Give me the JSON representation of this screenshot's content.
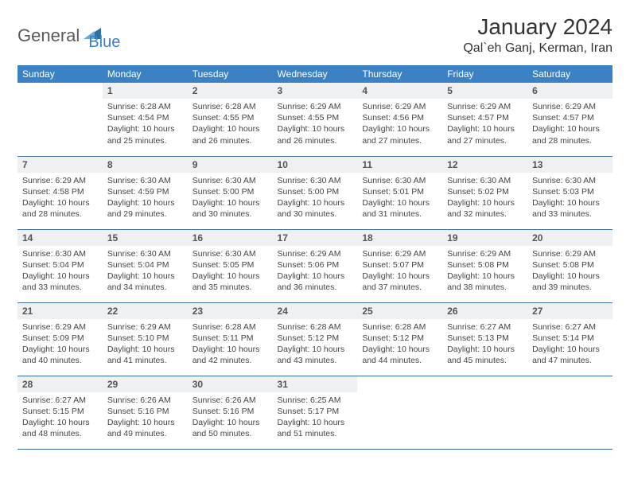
{
  "brand": {
    "part1": "General",
    "part2": "Blue",
    "logo_color": "#2f6fa8"
  },
  "title": "January 2024",
  "location": "Qal`eh Ganj, Kerman, Iran",
  "colors": {
    "header_bg": "#3b82c4",
    "header_text": "#ffffff",
    "daynum_bg": "#eef0f2",
    "row_border": "#3b6ea0",
    "body_text": "#444444"
  },
  "weekdays": [
    "Sunday",
    "Monday",
    "Tuesday",
    "Wednesday",
    "Thursday",
    "Friday",
    "Saturday"
  ],
  "leading_blanks": 1,
  "days": [
    {
      "n": 1,
      "sunrise": "6:28 AM",
      "sunset": "4:54 PM",
      "daylight": "10 hours and 25 minutes."
    },
    {
      "n": 2,
      "sunrise": "6:28 AM",
      "sunset": "4:55 PM",
      "daylight": "10 hours and 26 minutes."
    },
    {
      "n": 3,
      "sunrise": "6:29 AM",
      "sunset": "4:55 PM",
      "daylight": "10 hours and 26 minutes."
    },
    {
      "n": 4,
      "sunrise": "6:29 AM",
      "sunset": "4:56 PM",
      "daylight": "10 hours and 27 minutes."
    },
    {
      "n": 5,
      "sunrise": "6:29 AM",
      "sunset": "4:57 PM",
      "daylight": "10 hours and 27 minutes."
    },
    {
      "n": 6,
      "sunrise": "6:29 AM",
      "sunset": "4:57 PM",
      "daylight": "10 hours and 28 minutes."
    },
    {
      "n": 7,
      "sunrise": "6:29 AM",
      "sunset": "4:58 PM",
      "daylight": "10 hours and 28 minutes."
    },
    {
      "n": 8,
      "sunrise": "6:30 AM",
      "sunset": "4:59 PM",
      "daylight": "10 hours and 29 minutes."
    },
    {
      "n": 9,
      "sunrise": "6:30 AM",
      "sunset": "5:00 PM",
      "daylight": "10 hours and 30 minutes."
    },
    {
      "n": 10,
      "sunrise": "6:30 AM",
      "sunset": "5:00 PM",
      "daylight": "10 hours and 30 minutes."
    },
    {
      "n": 11,
      "sunrise": "6:30 AM",
      "sunset": "5:01 PM",
      "daylight": "10 hours and 31 minutes."
    },
    {
      "n": 12,
      "sunrise": "6:30 AM",
      "sunset": "5:02 PM",
      "daylight": "10 hours and 32 minutes."
    },
    {
      "n": 13,
      "sunrise": "6:30 AM",
      "sunset": "5:03 PM",
      "daylight": "10 hours and 33 minutes."
    },
    {
      "n": 14,
      "sunrise": "6:30 AM",
      "sunset": "5:04 PM",
      "daylight": "10 hours and 33 minutes."
    },
    {
      "n": 15,
      "sunrise": "6:30 AM",
      "sunset": "5:04 PM",
      "daylight": "10 hours and 34 minutes."
    },
    {
      "n": 16,
      "sunrise": "6:30 AM",
      "sunset": "5:05 PM",
      "daylight": "10 hours and 35 minutes."
    },
    {
      "n": 17,
      "sunrise": "6:29 AM",
      "sunset": "5:06 PM",
      "daylight": "10 hours and 36 minutes."
    },
    {
      "n": 18,
      "sunrise": "6:29 AM",
      "sunset": "5:07 PM",
      "daylight": "10 hours and 37 minutes."
    },
    {
      "n": 19,
      "sunrise": "6:29 AM",
      "sunset": "5:08 PM",
      "daylight": "10 hours and 38 minutes."
    },
    {
      "n": 20,
      "sunrise": "6:29 AM",
      "sunset": "5:08 PM",
      "daylight": "10 hours and 39 minutes."
    },
    {
      "n": 21,
      "sunrise": "6:29 AM",
      "sunset": "5:09 PM",
      "daylight": "10 hours and 40 minutes."
    },
    {
      "n": 22,
      "sunrise": "6:29 AM",
      "sunset": "5:10 PM",
      "daylight": "10 hours and 41 minutes."
    },
    {
      "n": 23,
      "sunrise": "6:28 AM",
      "sunset": "5:11 PM",
      "daylight": "10 hours and 42 minutes."
    },
    {
      "n": 24,
      "sunrise": "6:28 AM",
      "sunset": "5:12 PM",
      "daylight": "10 hours and 43 minutes."
    },
    {
      "n": 25,
      "sunrise": "6:28 AM",
      "sunset": "5:12 PM",
      "daylight": "10 hours and 44 minutes."
    },
    {
      "n": 26,
      "sunrise": "6:27 AM",
      "sunset": "5:13 PM",
      "daylight": "10 hours and 45 minutes."
    },
    {
      "n": 27,
      "sunrise": "6:27 AM",
      "sunset": "5:14 PM",
      "daylight": "10 hours and 47 minutes."
    },
    {
      "n": 28,
      "sunrise": "6:27 AM",
      "sunset": "5:15 PM",
      "daylight": "10 hours and 48 minutes."
    },
    {
      "n": 29,
      "sunrise": "6:26 AM",
      "sunset": "5:16 PM",
      "daylight": "10 hours and 49 minutes."
    },
    {
      "n": 30,
      "sunrise": "6:26 AM",
      "sunset": "5:16 PM",
      "daylight": "10 hours and 50 minutes."
    },
    {
      "n": 31,
      "sunrise": "6:25 AM",
      "sunset": "5:17 PM",
      "daylight": "10 hours and 51 minutes."
    }
  ],
  "labels": {
    "sunrise": "Sunrise:",
    "sunset": "Sunset:",
    "daylight": "Daylight:"
  }
}
